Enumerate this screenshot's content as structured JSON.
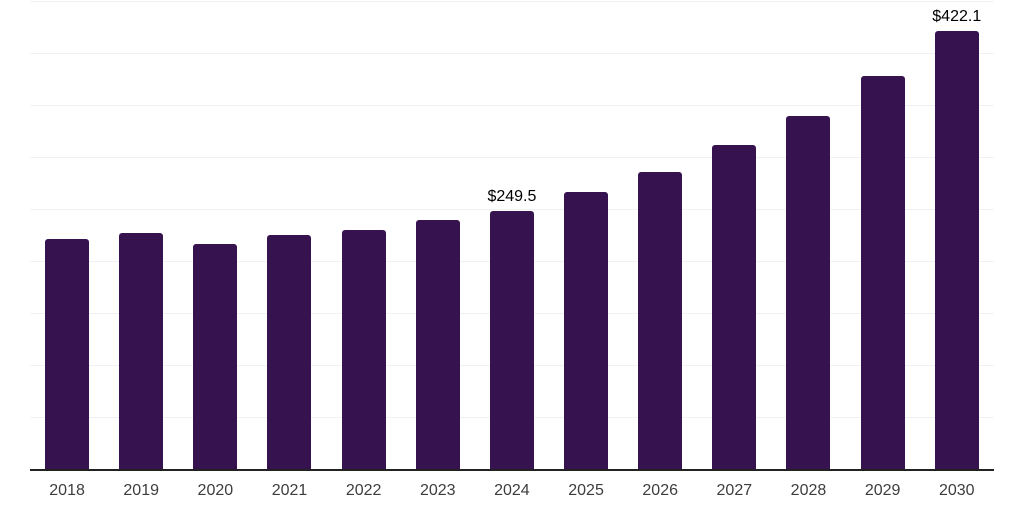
{
  "chart_data": {
    "type": "bar",
    "title": "",
    "xlabel": "",
    "ylabel": "",
    "categories": [
      "2018",
      "2019",
      "2020",
      "2021",
      "2022",
      "2023",
      "2024",
      "2025",
      "2026",
      "2027",
      "2028",
      "2029",
      "2030"
    ],
    "values": [
      222.2,
      228.0,
      217.4,
      226.1,
      230.9,
      240.0,
      249.5,
      267.4,
      286.7,
      312.6,
      340.5,
      379.0,
      422.1
    ],
    "data_labels": [
      "",
      "",
      "",
      "",
      "",
      "",
      "$249.5",
      "",
      "",
      "",
      "",
      "",
      "$422.1"
    ],
    "ylim": [
      0,
      450
    ],
    "gridline_step": 50,
    "grid_on": true,
    "legend_position": "none",
    "colors": {
      "bar": "#36124e",
      "gridline": "#f1f1f3",
      "axis": "#222222",
      "tick_label": "#3d3d3d",
      "data_label": "#000000",
      "background": "#ffffff"
    }
  }
}
